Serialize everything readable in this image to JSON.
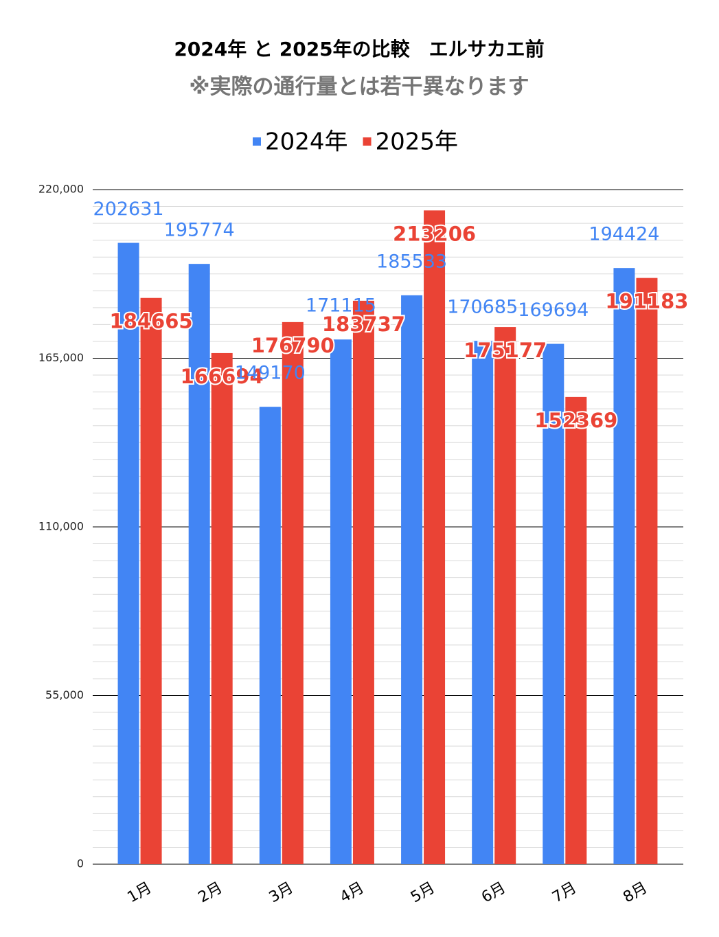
{
  "chart_data": {
    "type": "bar",
    "title": "2024年 と 2025年の比較　エルサカエ前",
    "subtitle": "※実際の通行量とは若干異なります",
    "categories": [
      "1月",
      "2月",
      "3月",
      "4月",
      "5月",
      "6月",
      "7月",
      "8月"
    ],
    "series": [
      {
        "name": "2024年",
        "color": "#4285f4",
        "values": [
          202631,
          195774,
          149170,
          171115,
          185533,
          170685,
          169694,
          194424
        ]
      },
      {
        "name": "2025年",
        "color": "#ea4335",
        "values": [
          184665,
          166694,
          176790,
          183737,
          213206,
          175177,
          152369,
          191183
        ]
      }
    ],
    "ylim": [
      0,
      220000
    ],
    "yticks": [
      0,
      {
        "value": 55000,
        "label": "55,000"
      },
      {
        "value": 110000,
        "label": "110,000"
      },
      {
        "value": 165000,
        "label": "165,000"
      },
      {
        "value": 220000,
        "label": "220,000"
      }
    ],
    "grid": true,
    "minor_grid": true,
    "legend": "top",
    "data_labels": true
  }
}
